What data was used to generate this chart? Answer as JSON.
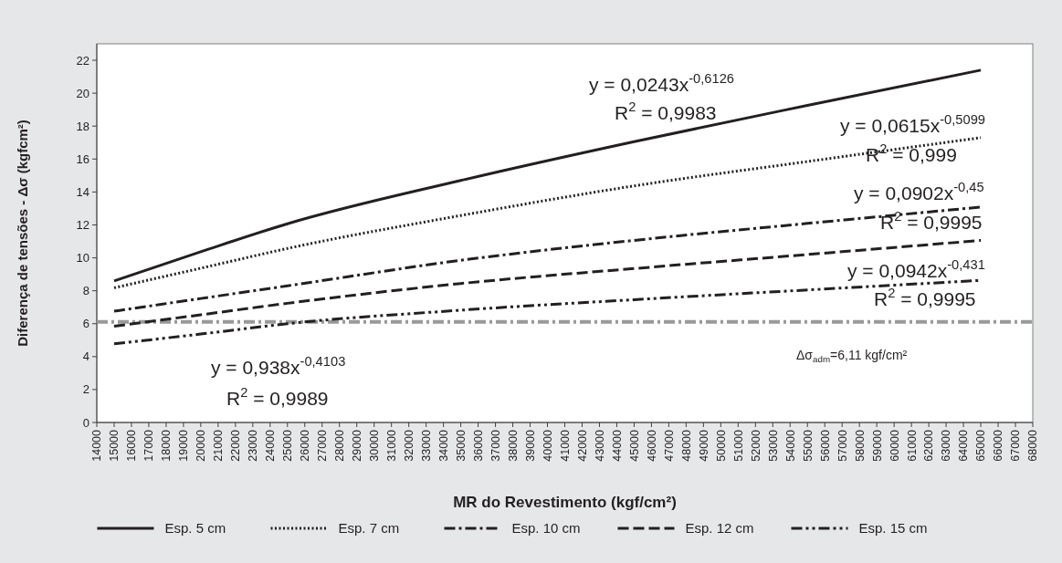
{
  "chart_data": {
    "type": "line",
    "xlabel": "MR do Revestimento (kgf/cm²)",
    "ylabel": "Diferença de tensões - Δσ (kgfcm²)",
    "x": [
      15000,
      20000,
      25000,
      35000,
      45000,
      55000,
      65000
    ],
    "series": [
      {
        "name": "Esp. 5 cm",
        "color": "#231f20",
        "line_style": "solid",
        "values": [
          8.6,
          10.37,
          12.07,
          14.7,
          17.06,
          19.26,
          21.4
        ]
      },
      {
        "name": "Esp. 7 cm",
        "color": "#231f20",
        "line_style": "dotted",
        "values": [
          8.18,
          9.37,
          10.57,
          12.57,
          14.37,
          15.85,
          17.3
        ]
      },
      {
        "name": "Esp. 10 cm",
        "color": "#231f20",
        "line_style": "dashdot",
        "values": [
          6.76,
          7.53,
          8.3,
          9.85,
          11.06,
          12.09,
          13.08
        ]
      },
      {
        "name": "Esp. 12 cm",
        "color": "#231f20",
        "line_style": "dashed",
        "values": [
          5.85,
          6.54,
          7.24,
          8.44,
          9.35,
          10.2,
          11.06
        ]
      },
      {
        "name": "Esp. 15 cm",
        "color": "#231f20",
        "line_style": "dashdotdot",
        "values": [
          4.78,
          5.37,
          6.0,
          6.82,
          7.46,
          8.05,
          8.63
        ]
      }
    ],
    "xlim": [
      14000,
      68000
    ],
    "ylim": [
      0,
      23
    ],
    "xticks": [
      14000,
      15000,
      16000,
      17000,
      18000,
      19000,
      20000,
      21000,
      22000,
      23000,
      24000,
      25000,
      26000,
      27000,
      28000,
      29000,
      30000,
      31000,
      32000,
      33000,
      34000,
      35000,
      36000,
      37000,
      38000,
      39000,
      40000,
      41000,
      42000,
      43000,
      44000,
      45000,
      46000,
      47000,
      48000,
      49000,
      50000,
      51000,
      52000,
      53000,
      54000,
      55000,
      56000,
      57000,
      58000,
      59000,
      60000,
      61000,
      62000,
      63000,
      64000,
      65000,
      66000,
      67000,
      68000
    ],
    "yticks": [
      0,
      2,
      4,
      6,
      8,
      10,
      12,
      14,
      16,
      18,
      20,
      22
    ],
    "grid": false,
    "legend": "bottom",
    "ref_lines": [
      {
        "axis": "y",
        "value": 6.11,
        "color": "#999999",
        "line_style": "dashdot"
      }
    ],
    "annotations": [
      "y = 0,0243x$^{-0,6126}$",
      "R$^{2}$ = 0,9983",
      "y = 0,0615x$^{-0,5099}$",
      "R$^{2}$ = 0,999",
      "y = 0,0902x$^{-0,45}$",
      "R$^{2}$ = 0,9995",
      "y = 0,0942x$^{-0,431}$",
      "R$^{2}$ = 0,9995",
      "y = 0,938x$^{-0,4103}$",
      "R$^{2}$ = 0,9989",
      "Δσ$_{adm}$=6,11 kgf/cm²"
    ]
  }
}
